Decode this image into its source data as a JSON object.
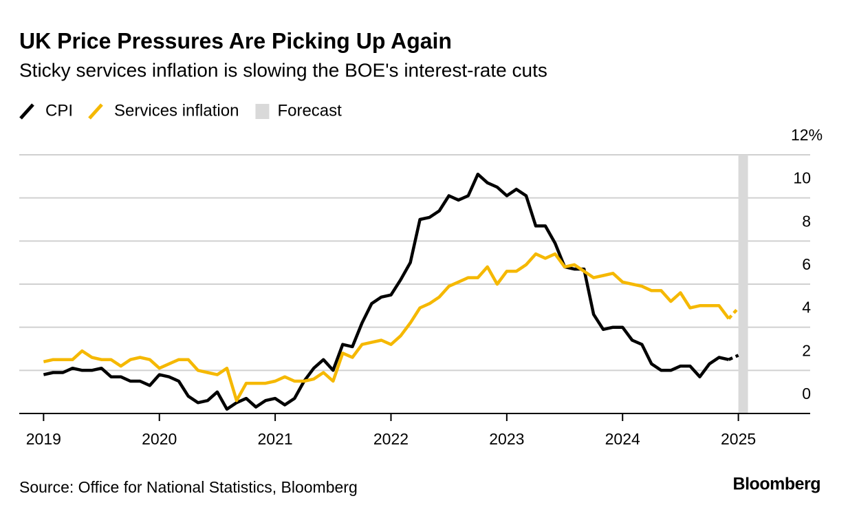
{
  "chart_data": {
    "type": "line",
    "title": "UK Price Pressures Are Picking Up Again",
    "subtitle": "Sticky services inflation is slowing the BOE's interest-rate cuts",
    "source": "Source: Office for National Statistics, Bloomberg",
    "logo": "Bloomberg",
    "x": [
      2019,
      2019.083,
      2019.167,
      2019.25,
      2019.333,
      2019.417,
      2019.5,
      2019.583,
      2019.667,
      2019.75,
      2019.833,
      2019.917,
      2020,
      2020.083,
      2020.167,
      2020.25,
      2020.333,
      2020.417,
      2020.5,
      2020.583,
      2020.667,
      2020.75,
      2020.833,
      2020.917,
      2021,
      2021.083,
      2021.167,
      2021.25,
      2021.333,
      2021.417,
      2021.5,
      2021.583,
      2021.667,
      2021.75,
      2021.833,
      2021.917,
      2022,
      2022.083,
      2022.167,
      2022.25,
      2022.333,
      2022.417,
      2022.5,
      2022.583,
      2022.667,
      2022.75,
      2022.833,
      2022.917,
      2023,
      2023.083,
      2023.167,
      2023.25,
      2023.333,
      2023.417,
      2023.5,
      2023.583,
      2023.667,
      2023.75,
      2023.833,
      2023.917,
      2024,
      2024.083,
      2024.167,
      2024.25,
      2024.333,
      2024.417,
      2024.5,
      2024.583,
      2024.667,
      2024.75,
      2024.833,
      2024.917,
      2025
    ],
    "series": [
      {
        "name": "CPI",
        "color": "#000000",
        "values": [
          1.8,
          1.9,
          1.9,
          2.1,
          2.0,
          2.0,
          2.1,
          1.7,
          1.7,
          1.5,
          1.5,
          1.3,
          1.8,
          1.7,
          1.5,
          0.8,
          0.5,
          0.6,
          1.0,
          0.2,
          0.5,
          0.7,
          0.3,
          0.6,
          0.7,
          0.4,
          0.7,
          1.5,
          2.1,
          2.5,
          2.0,
          3.2,
          3.1,
          4.2,
          5.1,
          5.4,
          5.5,
          6.2,
          7.0,
          9.0,
          9.1,
          9.4,
          10.1,
          9.9,
          10.1,
          11.1,
          10.7,
          10.5,
          10.1,
          10.4,
          10.1,
          8.7,
          8.7,
          7.9,
          6.8,
          6.7,
          6.7,
          4.6,
          3.9,
          4.0,
          4.0,
          3.4,
          3.2,
          2.3,
          2.0,
          2.0,
          2.2,
          2.2,
          1.7,
          2.3,
          2.6,
          2.5,
          2.7
        ]
      },
      {
        "name": "Services inflation",
        "color": "#f5b800",
        "values": [
          2.4,
          2.5,
          2.5,
          2.5,
          2.9,
          2.6,
          2.5,
          2.5,
          2.2,
          2.5,
          2.6,
          2.5,
          2.1,
          2.3,
          2.5,
          2.5,
          2.0,
          1.9,
          1.8,
          2.1,
          0.6,
          1.4,
          1.4,
          1.4,
          1.5,
          1.7,
          1.5,
          1.5,
          1.6,
          1.9,
          1.5,
          2.8,
          2.6,
          3.2,
          3.3,
          3.4,
          3.2,
          3.6,
          4.2,
          4.9,
          5.1,
          5.4,
          5.9,
          6.1,
          6.3,
          6.3,
          6.8,
          6.0,
          6.6,
          6.6,
          6.9,
          7.4,
          7.2,
          7.4,
          6.8,
          6.9,
          6.6,
          6.3,
          6.4,
          6.5,
          6.1,
          6.0,
          5.9,
          5.7,
          5.7,
          5.2,
          5.6,
          4.9,
          5.0,
          5.0,
          5.0,
          4.4,
          4.9
        ]
      }
    ],
    "forecast": {
      "name": "Forecast",
      "color": "#d9d9d9",
      "xlim": [
        2025,
        2025.083
      ]
    },
    "xlim": [
      2018.79,
      2025.62
    ],
    "xticks": [
      2019,
      2020,
      2021,
      2022,
      2023,
      2024,
      2025
    ],
    "ylim": [
      0,
      12
    ],
    "yticks": [
      0,
      2,
      4,
      6,
      8,
      10,
      {
        "value": 12,
        "label": "12%"
      }
    ],
    "grid": true
  }
}
